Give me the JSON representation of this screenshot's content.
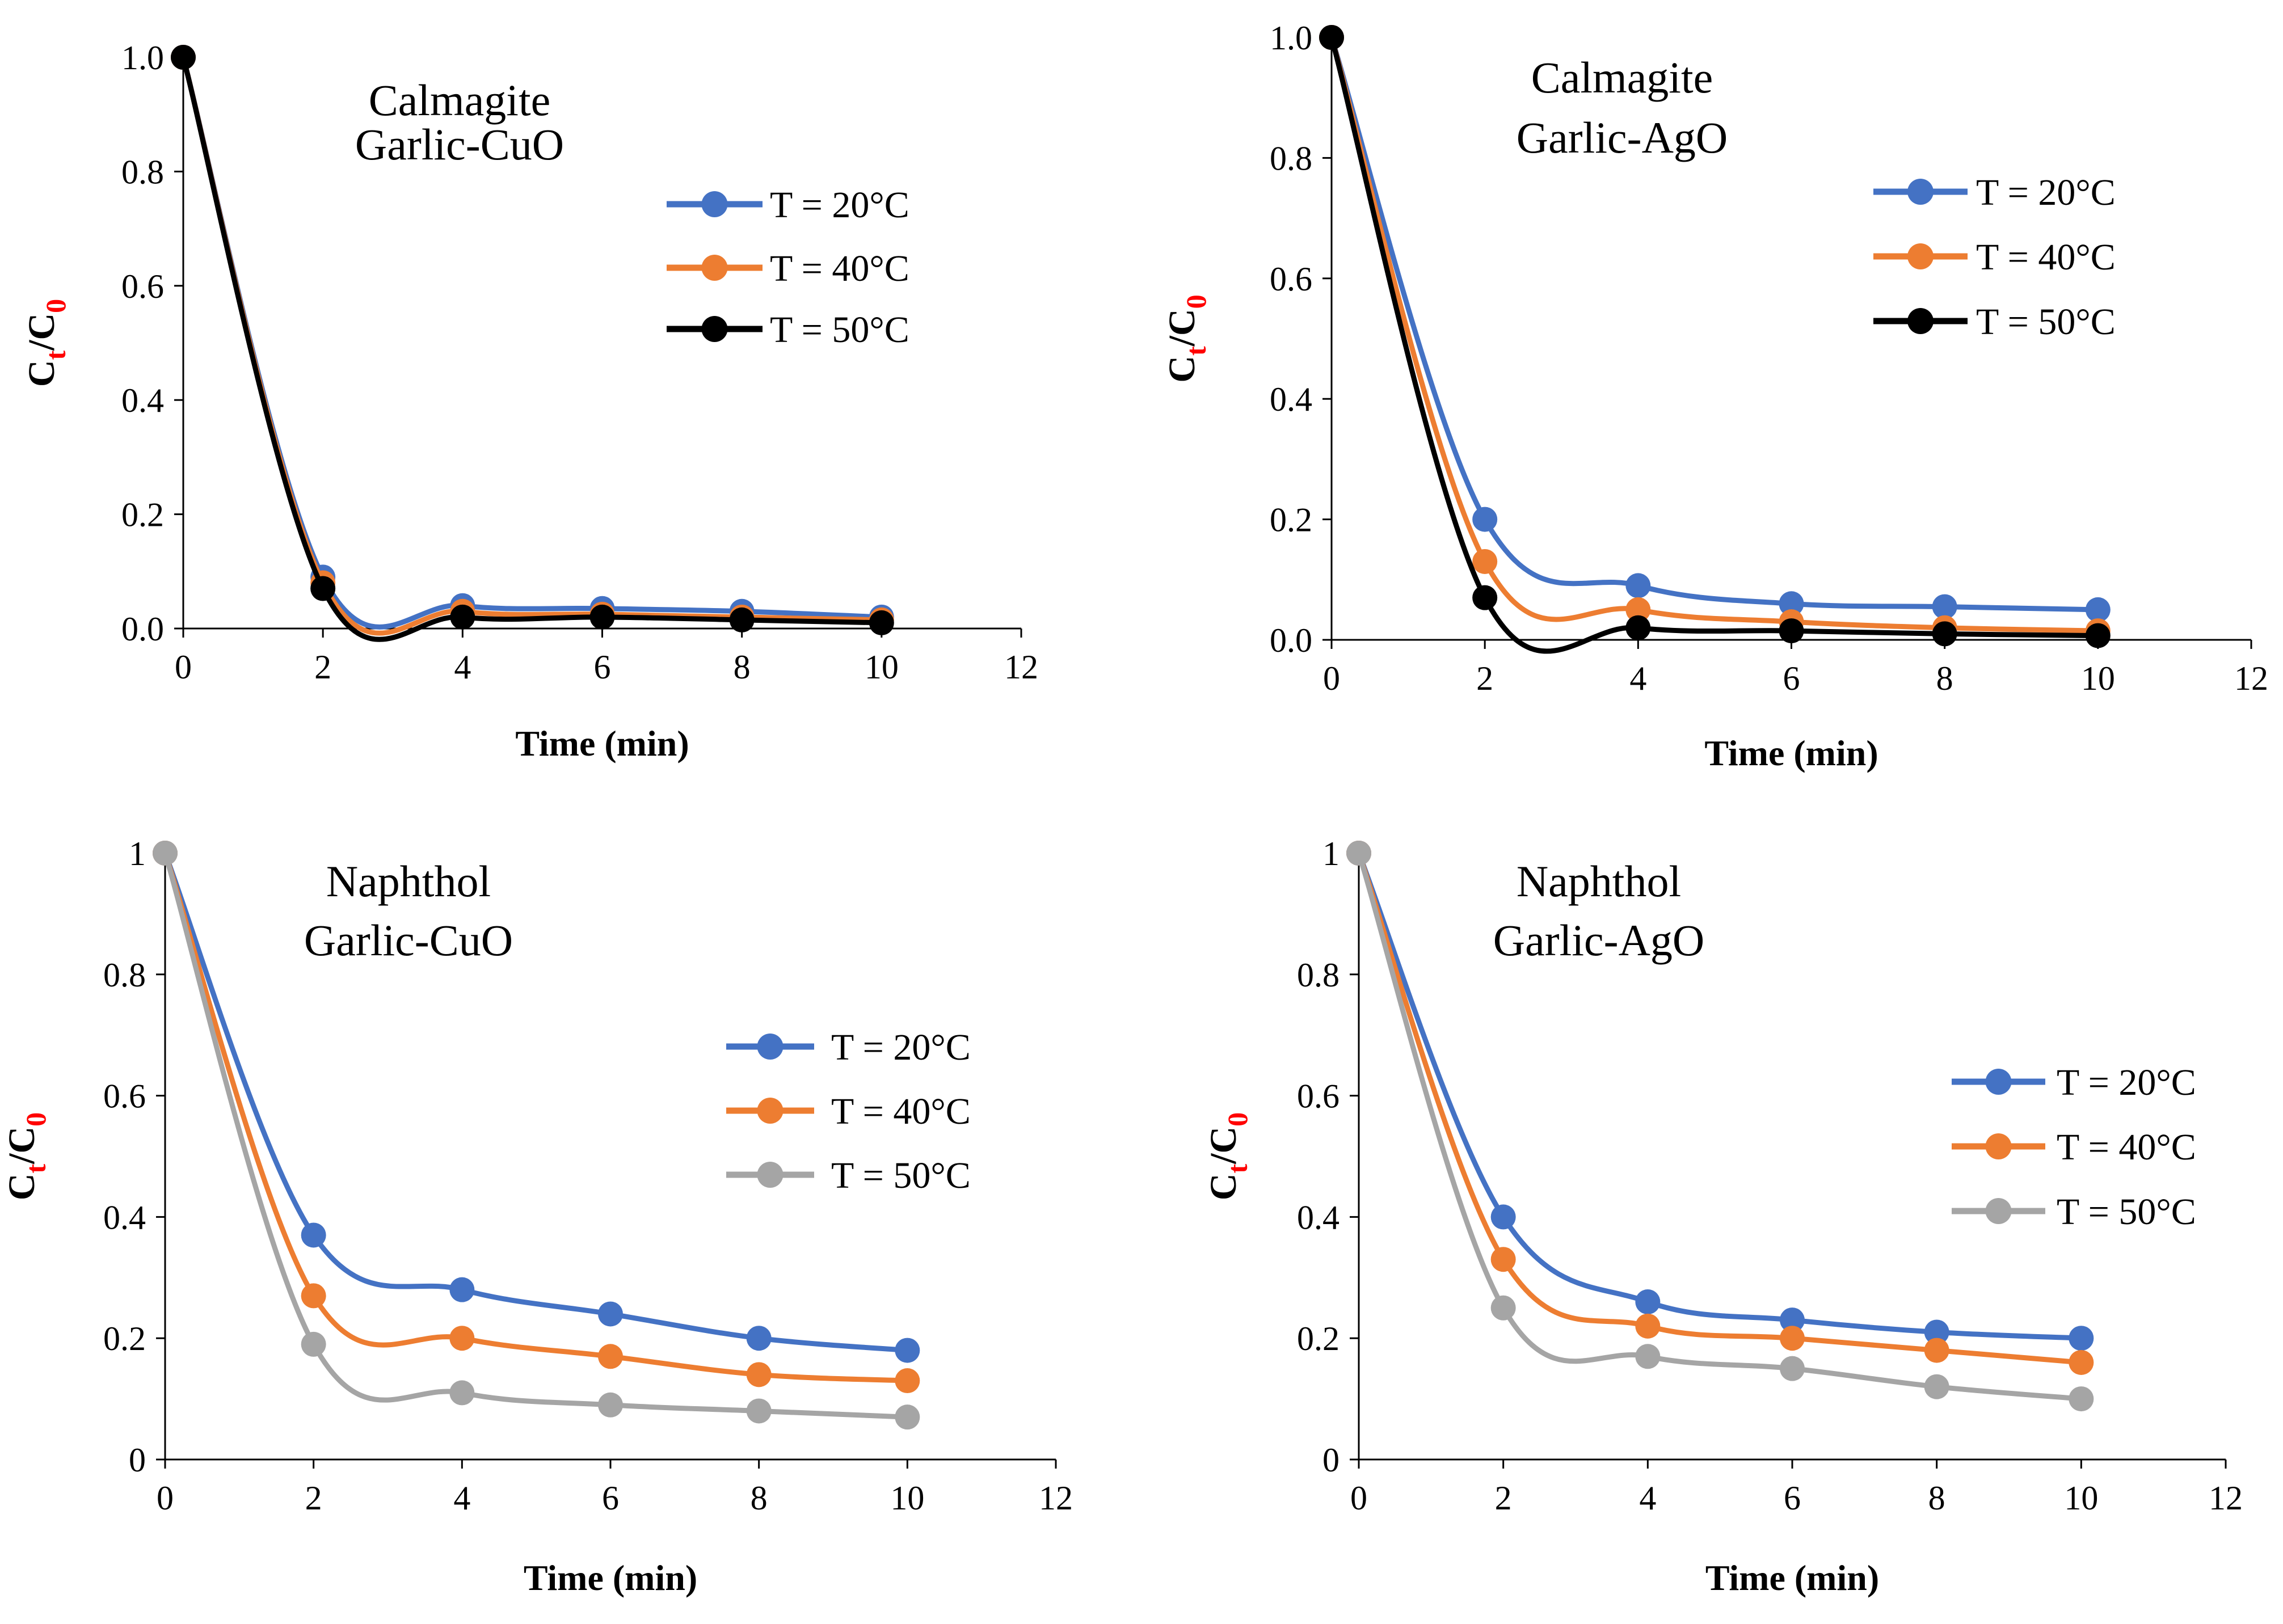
{
  "colors": {
    "blue": "#4472C4",
    "orange": "#ED7D31",
    "black": "#000000",
    "gray": "#A5A5A5",
    "sub": "#FF0000"
  },
  "chart_data": [
    {
      "type": "line",
      "title": "",
      "annotation": [
        "Calmagite",
        "Garlic-CuO"
      ],
      "xlabel": "Time (min)",
      "ylabel": {
        "main": "C",
        "sub1": "t",
        "mid": "/C",
        "sub2": "0"
      },
      "xlim": [
        0,
        12
      ],
      "ylim": [
        0,
        1.0
      ],
      "x_ticks": [
        "0",
        "2",
        "4",
        "6",
        "8",
        "10",
        "12"
      ],
      "y_ticks": [
        "0.0",
        "0.2",
        "0.4",
        "0.6",
        "0.8",
        "1.0"
      ],
      "x": [
        0,
        2,
        4,
        6,
        8,
        10
      ],
      "legend": "top-right",
      "series": [
        {
          "name": "T = 20°C",
          "color": "#4472C4",
          "values": [
            1.0,
            0.09,
            0.04,
            0.035,
            0.03,
            0.02
          ]
        },
        {
          "name": "T = 40°C",
          "color": "#ED7D31",
          "values": [
            1.0,
            0.08,
            0.03,
            0.025,
            0.02,
            0.015
          ]
        },
        {
          "name": "T = 50°C",
          "color": "#000000",
          "values": [
            1.0,
            0.07,
            0.02,
            0.02,
            0.015,
            0.01
          ]
        }
      ]
    },
    {
      "type": "line",
      "title": "",
      "annotation": [
        "Calmagite",
        "Garlic-AgO"
      ],
      "xlabel": "Time (min)",
      "ylabel": {
        "main": "C",
        "sub1": "t",
        "mid": "/C",
        "sub2": "0"
      },
      "xlim": [
        0,
        12
      ],
      "ylim": [
        0,
        1.0
      ],
      "x_ticks": [
        "0",
        "2",
        "4",
        "6",
        "8",
        "10",
        "12"
      ],
      "y_ticks": [
        "0.0",
        "0.2",
        "0.4",
        "0.6",
        "0.8",
        "1.0"
      ],
      "x": [
        0,
        2,
        4,
        6,
        8,
        10
      ],
      "legend": "top-right",
      "series": [
        {
          "name": "T = 20°C",
          "color": "#4472C4",
          "values": [
            1.0,
            0.2,
            0.09,
            0.06,
            0.055,
            0.05
          ]
        },
        {
          "name": "T = 40°C",
          "color": "#ED7D31",
          "values": [
            1.0,
            0.13,
            0.05,
            0.03,
            0.02,
            0.015
          ]
        },
        {
          "name": "T = 50°C",
          "color": "#000000",
          "values": [
            1.0,
            0.07,
            0.02,
            0.015,
            0.01,
            0.007
          ]
        }
      ]
    },
    {
      "type": "line",
      "title": "",
      "annotation": [
        "Naphthol",
        "Garlic-CuO"
      ],
      "xlabel": "Time (min)",
      "ylabel": {
        "main": "C",
        "sub1": "t",
        "mid": "/C",
        "sub2": "0"
      },
      "xlim": [
        0,
        12
      ],
      "ylim": [
        0,
        1
      ],
      "x_ticks": [
        "0",
        "2",
        "4",
        "6",
        "8",
        "10",
        "12"
      ],
      "y_ticks": [
        "0",
        "0.2",
        "0.4",
        "0.6",
        "0.8",
        "1"
      ],
      "x": [
        0,
        2,
        4,
        6,
        8,
        10
      ],
      "legend": "right",
      "series": [
        {
          "name": "T = 20°C",
          "color": "#4472C4",
          "values": [
            1,
            0.37,
            0.28,
            0.24,
            0.2,
            0.18
          ]
        },
        {
          "name": "T = 40°C",
          "color": "#ED7D31",
          "values": [
            1,
            0.27,
            0.2,
            0.17,
            0.14,
            0.13
          ]
        },
        {
          "name": "T = 50°C",
          "color": "#A5A5A5",
          "values": [
            1,
            0.19,
            0.11,
            0.09,
            0.08,
            0.07
          ]
        }
      ]
    },
    {
      "type": "line",
      "title": "",
      "annotation": [
        "Naphthol",
        "Garlic-AgO"
      ],
      "xlabel": "Time (min)",
      "ylabel": {
        "main": "C",
        "sub1": "t",
        "mid": "/C",
        "sub2": "0"
      },
      "xlim": [
        0,
        12
      ],
      "ylim": [
        0,
        1
      ],
      "x_ticks": [
        "0",
        "2",
        "4",
        "6",
        "8",
        "10",
        "12"
      ],
      "y_ticks": [
        "0",
        "0.2",
        "0.4",
        "0.6",
        "0.8",
        "1"
      ],
      "x": [
        0,
        2,
        4,
        6,
        8,
        10
      ],
      "legend": "right",
      "series": [
        {
          "name": "T = 20°C",
          "color": "#4472C4",
          "values": [
            1,
            0.4,
            0.26,
            0.23,
            0.21,
            0.2
          ]
        },
        {
          "name": "T = 40°C",
          "color": "#ED7D31",
          "values": [
            1,
            0.33,
            0.22,
            0.2,
            0.18,
            0.16
          ]
        },
        {
          "name": "T = 50°C",
          "color": "#A5A5A5",
          "values": [
            1,
            0.25,
            0.17,
            0.15,
            0.12,
            0.1
          ]
        }
      ]
    }
  ]
}
